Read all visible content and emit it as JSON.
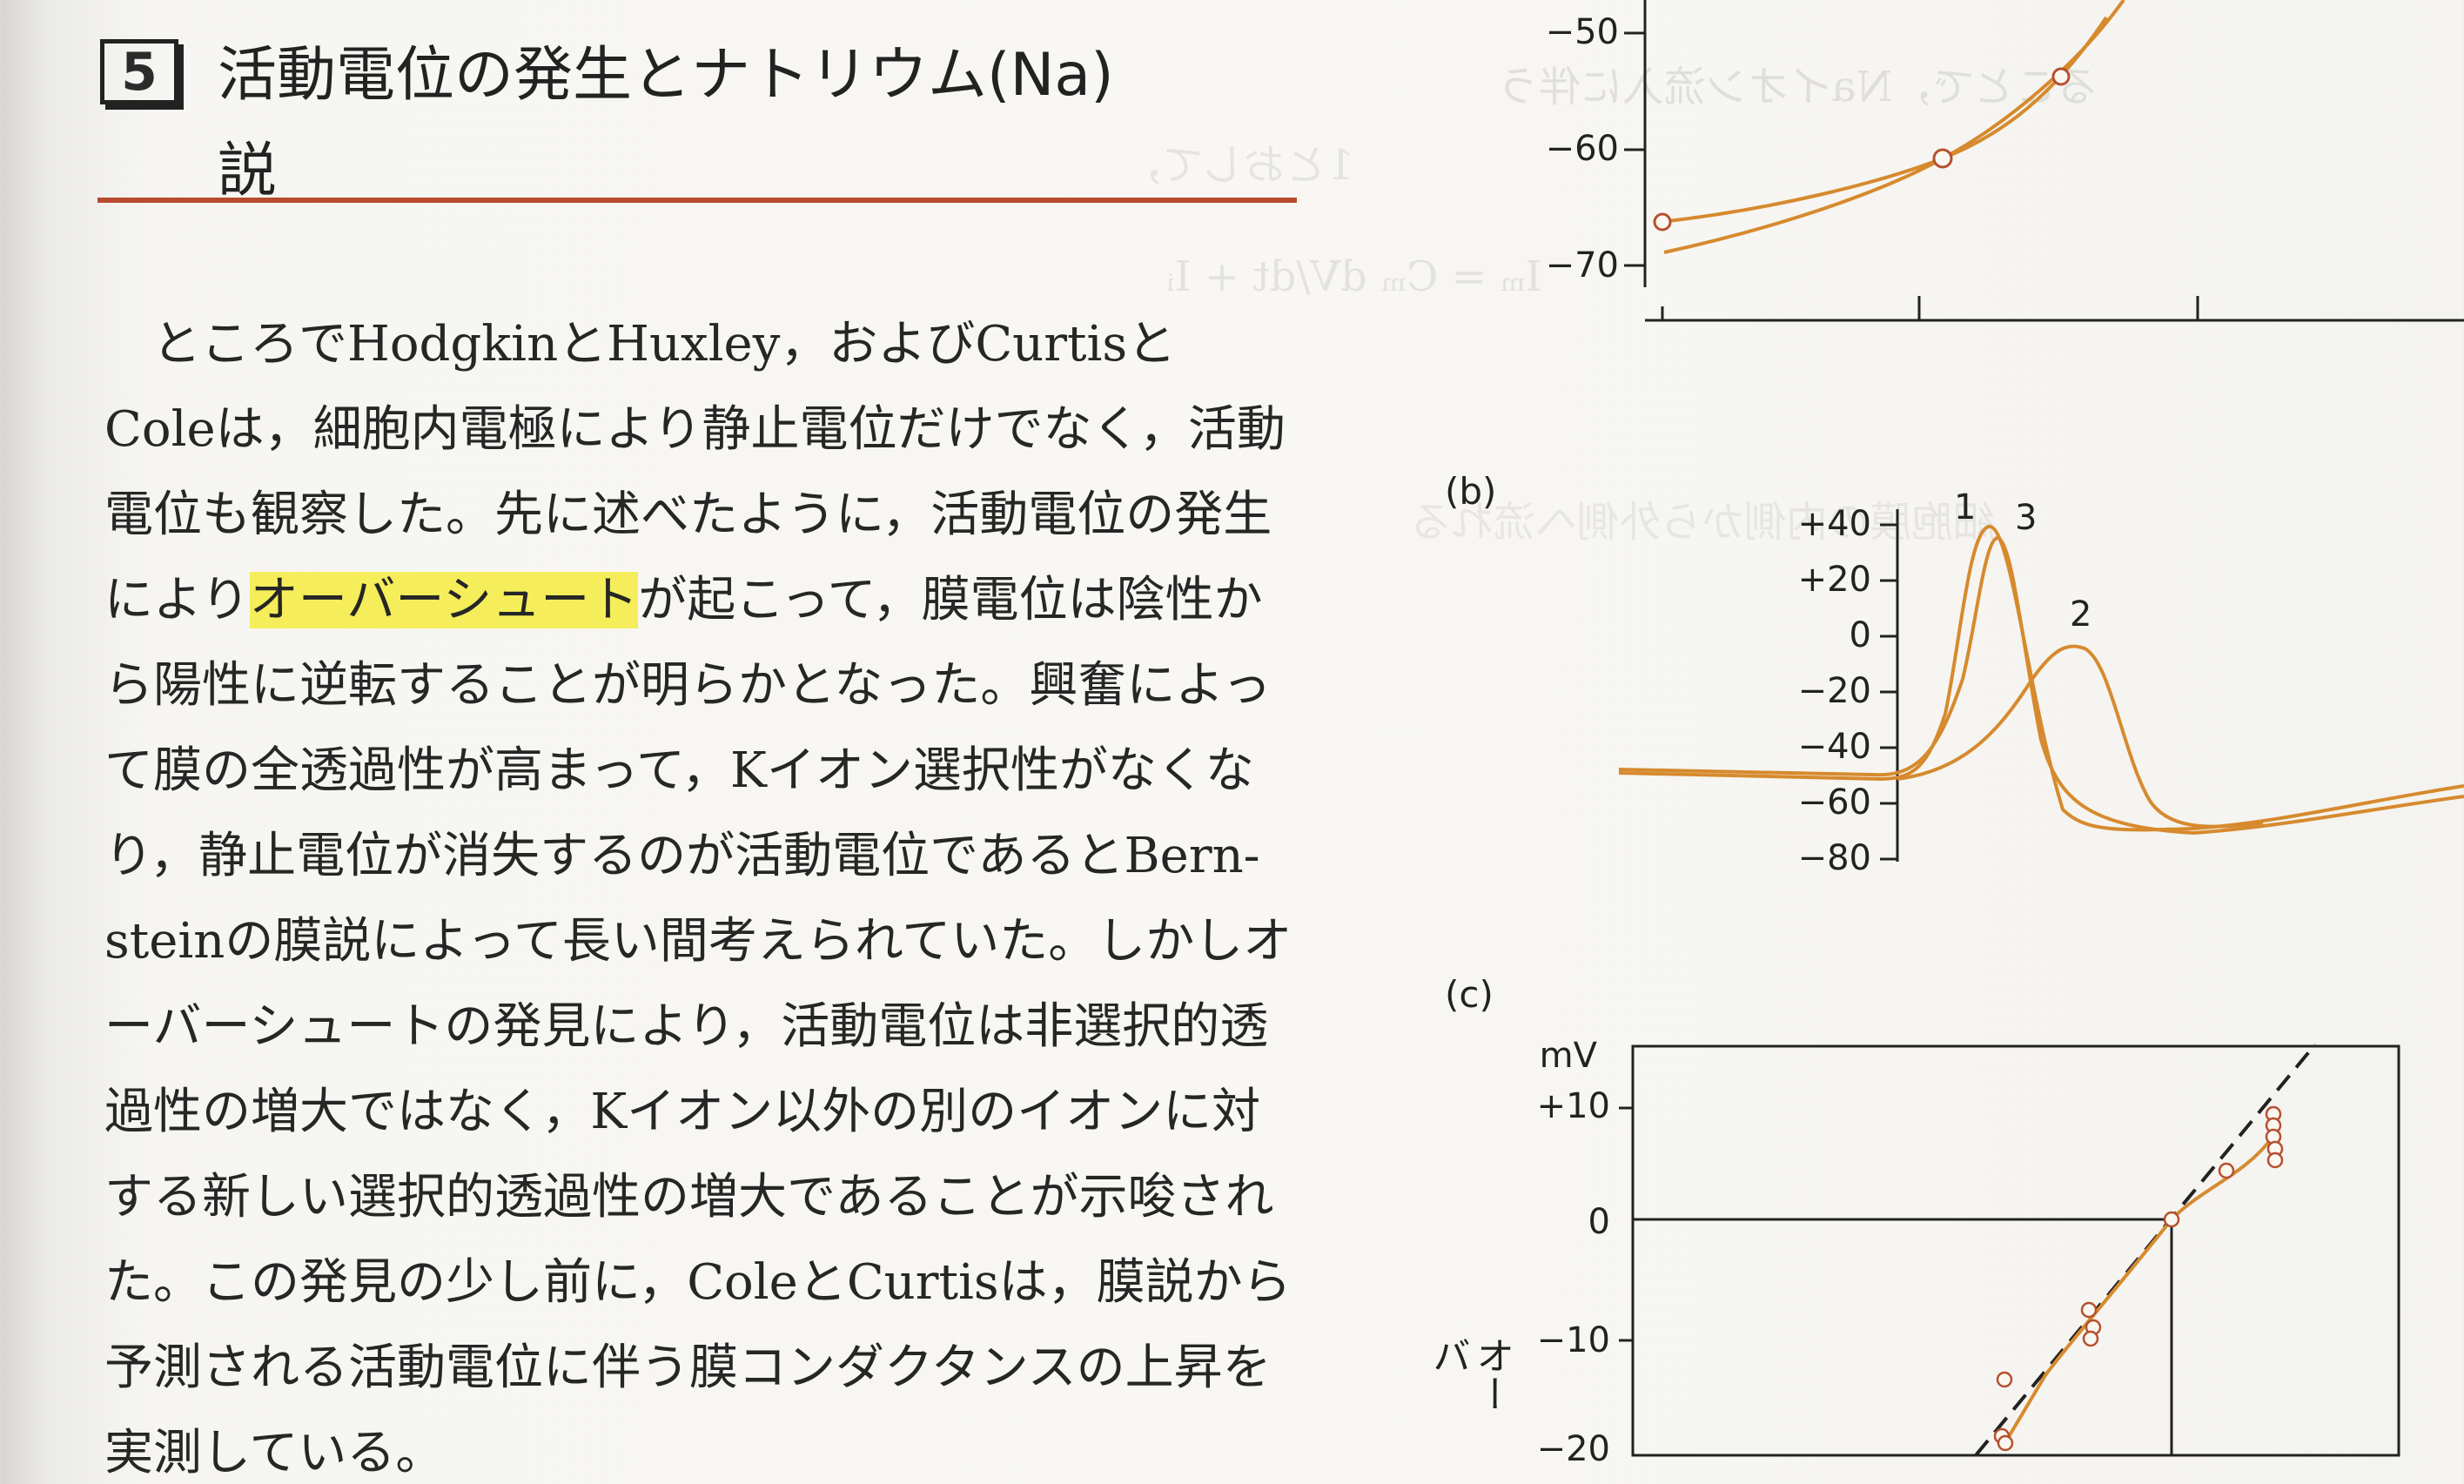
{
  "heading": {
    "number": "5",
    "title_line1": "活動電位の発生とナトリウム(Na)",
    "title_line2": "説"
  },
  "body_lines": [
    {
      "pre": "ところでHodgkinとHuxley，およびCurtisと",
      "hl": "",
      "post": ""
    },
    {
      "pre": "Coleは，細胞内電極により静止電位だけでなく，活動",
      "hl": "",
      "post": ""
    },
    {
      "pre": "電位も観察した。先に述べたように，活動電位の発生",
      "hl": "",
      "post": ""
    },
    {
      "pre": "により",
      "hl": "オーバーシュート",
      "post": "が起こって，膜電位は陰性か"
    },
    {
      "pre": "ら陽性に逆転することが明らかとなった。興奮によっ",
      "hl": "",
      "post": ""
    },
    {
      "pre": "て膜の全透過性が高まって，Kイオン選択性がなくな",
      "hl": "",
      "post": ""
    },
    {
      "pre": "り，静止電位が消失するのが活動電位であるとBern-",
      "hl": "",
      "post": ""
    },
    {
      "pre": "steinの膜説によって長い間考えられていた。しかしオ",
      "hl": "",
      "post": ""
    },
    {
      "pre": "ーバーシュートの発見により，活動電位は非選択的透",
      "hl": "",
      "post": ""
    },
    {
      "pre": "過性の増大ではなく，Kイオン以外の別のイオンに対",
      "hl": "",
      "post": ""
    },
    {
      "pre": "する新しい選択的透過性の増大であることが示唆され",
      "hl": "",
      "post": ""
    },
    {
      "pre": "た。この発見の少し前に，ColeとCurtisは，膜説から",
      "hl": "",
      "post": ""
    },
    {
      "pre": "予測される活動電位に伴う膜コンダクタンスの上昇を",
      "hl": "",
      "post": ""
    },
    {
      "pre": "実測している。",
      "hl": "",
      "post": ""
    }
  ],
  "bleed_through": [
    "ることで，Naイオン流入に伴う",
    "1とおして，",
    "Iₘ = Cₘ dV/dt + Iᵢ",
    "細胞膜の内側から外側へ流れる"
  ],
  "figure_a": {
    "yticks": [
      "−50",
      "−60",
      "−70"
    ]
  },
  "figure_b": {
    "label": "(b)",
    "yticks": [
      "+40",
      "+20",
      "0",
      "−20",
      "−40",
      "−60",
      "−80"
    ],
    "curve_labels": [
      "1",
      "3",
      "2"
    ]
  },
  "figure_c": {
    "label": "(c)",
    "unit": "mV",
    "yticks": [
      "+10",
      "0",
      "−10",
      "−20"
    ],
    "ylabel": "オーバ"
  },
  "colors": {
    "curve": "#d68a2e",
    "marker": "#b5502f",
    "rule": "#b84a2f",
    "highlight": "#f5ee5a"
  }
}
